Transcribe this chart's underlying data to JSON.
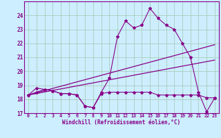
{
  "xlabel": "Windchill (Refroidissement éolien,°C)",
  "bg_color": "#cceeff",
  "grid_color": "#aaccbb",
  "line_color": "#880088",
  "x_labels": [
    "0",
    "1",
    "2",
    "3",
    "4",
    "5",
    "6",
    "7",
    "8",
    "9",
    "10",
    "11",
    "12",
    "13",
    "14",
    "15",
    "16",
    "17",
    "18",
    "19",
    "20",
    "21",
    "22",
    "23"
  ],
  "ylim": [
    17,
    25
  ],
  "xlim": [
    -0.5,
    23.5
  ],
  "yticks": [
    17,
    18,
    19,
    20,
    21,
    22,
    23,
    24
  ],
  "series1": [
    18.3,
    18.8,
    18.7,
    18.6,
    18.4,
    18.4,
    18.3,
    17.5,
    17.4,
    18.5,
    19.5,
    22.5,
    23.6,
    23.1,
    23.3,
    24.5,
    23.8,
    23.3,
    23.0,
    22.0,
    21.0,
    18.5,
    17.1,
    18.1
  ],
  "series2": [
    18.3,
    18.5,
    18.7,
    18.6,
    18.4,
    18.4,
    18.3,
    17.5,
    17.4,
    18.4,
    18.5,
    18.5,
    18.5,
    18.5,
    18.5,
    18.5,
    18.3,
    18.3,
    18.3,
    18.3,
    18.3,
    18.3,
    18.1,
    18.1
  ],
  "series3_x": [
    0,
    23
  ],
  "series3_y": [
    18.3,
    21.9
  ],
  "series4_x": [
    0,
    23
  ],
  "series4_y": [
    18.3,
    20.8
  ]
}
